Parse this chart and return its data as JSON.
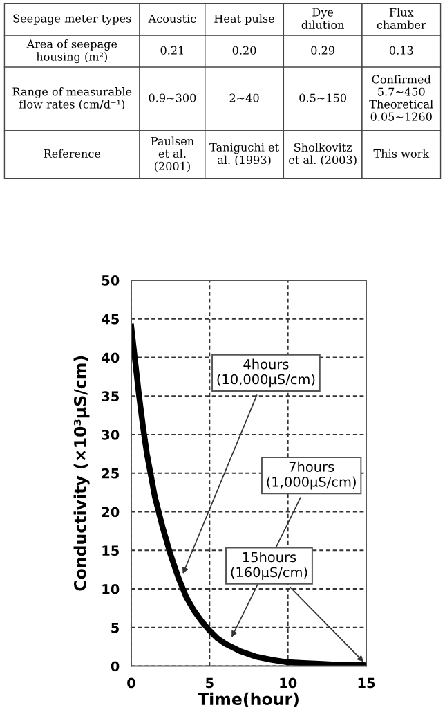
{
  "chart_data": [
    {
      "type": "other",
      "categories": [
        "Seepage meter types",
        "Acoustic",
        "Heat pulse",
        "Dye\ndilution",
        "Flux\nchamber"
      ],
      "cell_labels": [
        [
          "Area of seepage\nhousing (m²)",
          "0.21",
          "0.20",
          "0.29",
          "0.13"
        ],
        [
          "Range of measurable\nflow rates (cm/d⁻¹)",
          "0.9∼300",
          "2∼40",
          "0.5∼150",
          "Confirmed\n5.7∼450\nTheoretical\n0.05∼1260"
        ],
        [
          "Reference",
          "Paulsen\net al.\n(2001)",
          "Taniguchi et\nal. (1993)",
          "Sholkovitz\net al. (2003)",
          "This work"
        ]
      ]
    },
    {
      "type": "line",
      "xlabel": "Time(hour)",
      "ylabel": "Conductivity (×10³μS/cm)",
      "x": [
        0,
        0.25,
        0.5,
        0.75,
        1,
        1.5,
        2,
        2.5,
        3,
        3.5,
        4,
        4.5,
        5,
        5.5,
        6,
        7,
        8,
        9,
        10,
        11,
        12,
        13,
        14,
        15
      ],
      "series": [
        {
          "color": "#000000",
          "values": [
            44,
            39.5,
            35,
            31,
            27.5,
            22,
            18,
            14.5,
            11.5,
            9,
            7.2,
            5.8,
            4.6,
            3.6,
            2.9,
            1.9,
            1.2,
            0.8,
            0.5,
            0.4,
            0.3,
            0.2,
            0.2,
            0.1
          ]
        }
      ],
      "xlim": [
        0,
        15
      ],
      "ylim": [
        0,
        50
      ],
      "xticks": [
        0,
        5,
        10,
        15
      ],
      "yticks": [
        0,
        5,
        10,
        15,
        20,
        25,
        30,
        35,
        40,
        45,
        50
      ],
      "grid": true,
      "marker": "none",
      "line_style": "solid",
      "legend": false,
      "annotations": [
        {
          "text": "4hours\n(10,000μS/cm)",
          "x": 3.2,
          "y": 11.5
        },
        {
          "text": "7hours\n(1,000μS/cm)",
          "x": 6.3,
          "y": 3.3
        },
        {
          "text": "15hours\n(160μS/cm)",
          "x": 15,
          "y": 0.2
        }
      ]
    }
  ]
}
